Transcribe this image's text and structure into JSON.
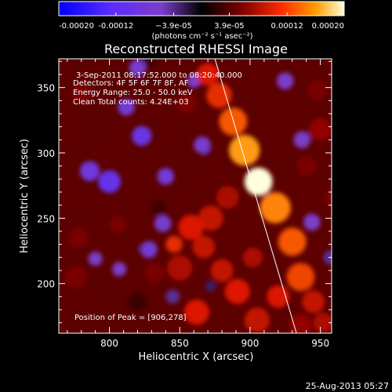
{
  "chart_data": {
    "type": "heatmap",
    "title": "Reconstructed RHESSI Image",
    "xlabel": "Heliocentric X (arcsec)",
    "ylabel": "Heliocentric Y (arcsec)",
    "xlim": [
      764,
      958
    ],
    "ylim": [
      162,
      372
    ],
    "x_ticks": [
      800,
      850,
      900,
      950
    ],
    "y_ticks": [
      200,
      250,
      300,
      350
    ],
    "x_tick_labels": [
      "800",
      "850",
      "900",
      "950"
    ],
    "y_tick_labels": [
      "200",
      "250",
      "300",
      "350"
    ],
    "colorbar": {
      "min": -0.0002,
      "max": 0.0002,
      "tick_values": [
        -0.0002,
        -0.00012,
        -3.9e-05,
        3.9e-05,
        0.00012,
        0.0002
      ],
      "tick_labels": [
        "-0.00020",
        "-0.00012",
        "−3.9e-05",
        "3.9e-05",
        "0.00012",
        "0.00020"
      ],
      "unit_label": "(photons cm⁻² s⁻¹ asec⁻²)"
    },
    "annotations": {
      "time_range": "3-Sep-2011 08:17:52.000 to 08:20:40.000",
      "detectors": "Detectors: 4F 5F 6F 7F 8F, AF",
      "energy_range": "Energy Range: 25.0 - 50.0 keV",
      "method_counts": "Clean     Total counts: 4.24E+03",
      "peak": "Position of Peak = [906,278]"
    },
    "peak": {
      "x": 906,
      "y": 278
    },
    "limb_line": [
      [
        875,
        372
      ],
      [
        933,
        162
      ]
    ],
    "blobs": [
      {
        "x": 906,
        "y": 278,
        "r": 10,
        "v": 0.0002
      },
      {
        "x": 896,
        "y": 302,
        "r": 11,
        "v": 0.00014
      },
      {
        "x": 888,
        "y": 324,
        "r": 10,
        "v": 0.00011
      },
      {
        "x": 878,
        "y": 344,
        "r": 9,
        "v": 9e-05
      },
      {
        "x": 870,
        "y": 360,
        "r": 8,
        "v": 8e-05
      },
      {
        "x": 918,
        "y": 258,
        "r": 11,
        "v": 0.00013
      },
      {
        "x": 930,
        "y": 232,
        "r": 10,
        "v": 0.00011
      },
      {
        "x": 936,
        "y": 205,
        "r": 10,
        "v": 0.0001
      },
      {
        "x": 945,
        "y": 186,
        "r": 8,
        "v": 7e-05
      },
      {
        "x": 884,
        "y": 266,
        "r": 8,
        "v": 6e-05
      },
      {
        "x": 872,
        "y": 250,
        "r": 9,
        "v": 7e-05
      },
      {
        "x": 858,
        "y": 243,
        "r": 9,
        "v": 8e-05
      },
      {
        "x": 846,
        "y": 230,
        "r": 6,
        "v": 9e-05
      },
      {
        "x": 867,
        "y": 228,
        "r": 8,
        "v": 7e-05
      },
      {
        "x": 850,
        "y": 212,
        "r": 9,
        "v": 6e-05
      },
      {
        "x": 880,
        "y": 210,
        "r": 8,
        "v": 7e-05
      },
      {
        "x": 902,
        "y": 220,
        "r": 7,
        "v": 6e-05
      },
      {
        "x": 891,
        "y": 194,
        "r": 9,
        "v": 8e-05
      },
      {
        "x": 920,
        "y": 190,
        "r": 8,
        "v": 8e-05
      },
      {
        "x": 862,
        "y": 178,
        "r": 9,
        "v": 8e-05
      },
      {
        "x": 905,
        "y": 172,
        "r": 9,
        "v": 7e-05
      },
      {
        "x": 936,
        "y": 168,
        "r": 8,
        "v": 5e-05
      },
      {
        "x": 952,
        "y": 170,
        "r": 7,
        "v": 6e-05
      },
      {
        "x": 832,
        "y": 208,
        "r": 7,
        "v": 4e-05
      },
      {
        "x": 816,
        "y": 227,
        "r": 5,
        "v": 3e-05
      },
      {
        "x": 806,
        "y": 245,
        "r": 6,
        "v": 4e-05
      },
      {
        "x": 835,
        "y": 258,
        "r": 5,
        "v": 2e-05
      },
      {
        "x": 790,
        "y": 252,
        "r": 6,
        "v": 3e-05
      },
      {
        "x": 778,
        "y": 235,
        "r": 7,
        "v": 4e-05
      },
      {
        "x": 776,
        "y": 205,
        "r": 8,
        "v": 4e-05
      },
      {
        "x": 798,
        "y": 198,
        "r": 7,
        "v": 3e-05
      },
      {
        "x": 820,
        "y": 186,
        "r": 7,
        "v": 2e-05
      },
      {
        "x": 792,
        "y": 318,
        "r": 6,
        "v": 3e-05
      },
      {
        "x": 780,
        "y": 346,
        "r": 7,
        "v": 4e-05
      },
      {
        "x": 820,
        "y": 350,
        "r": 6,
        "v": 3e-05
      },
      {
        "x": 855,
        "y": 338,
        "r": 7,
        "v": 4e-05
      },
      {
        "x": 845,
        "y": 305,
        "r": 6,
        "v": 3e-05
      },
      {
        "x": 872,
        "y": 296,
        "r": 6,
        "v": 3e-05
      },
      {
        "x": 948,
        "y": 348,
        "r": 7,
        "v": 4e-05
      },
      {
        "x": 950,
        "y": 318,
        "r": 8,
        "v": 5e-05
      },
      {
        "x": 940,
        "y": 290,
        "r": 7,
        "v": 4e-05
      },
      {
        "x": 960,
        "y": 266,
        "r": 7,
        "v": 4e-05
      },
      {
        "x": 828,
        "y": 372,
        "r": 6,
        "v": 2e-05
      },
      {
        "x": 800,
        "y": 278,
        "r": 8,
        "v": -9e-05
      },
      {
        "x": 823,
        "y": 313,
        "r": 7,
        "v": -8e-05
      },
      {
        "x": 812,
        "y": 335,
        "r": 6,
        "v": -6e-05
      },
      {
        "x": 786,
        "y": 286,
        "r": 7,
        "v": -7e-05
      },
      {
        "x": 838,
        "y": 246,
        "r": 6,
        "v": -5e-05
      },
      {
        "x": 828,
        "y": 226,
        "r": 6,
        "v": -6e-05
      },
      {
        "x": 820,
        "y": 365,
        "r": 6,
        "v": -5e-05
      },
      {
        "x": 860,
        "y": 355,
        "r": 5,
        "v": -4e-05
      },
      {
        "x": 866,
        "y": 306,
        "r": 6,
        "v": -5e-05
      },
      {
        "x": 840,
        "y": 282,
        "r": 6,
        "v": -6e-05
      },
      {
        "x": 790,
        "y": 219,
        "r": 5,
        "v": -4e-05
      },
      {
        "x": 807,
        "y": 211,
        "r": 5,
        "v": -4e-05
      },
      {
        "x": 845,
        "y": 190,
        "r": 5,
        "v": -3e-05
      },
      {
        "x": 937,
        "y": 310,
        "r": 6,
        "v": -4e-05
      },
      {
        "x": 944,
        "y": 247,
        "r": 6,
        "v": -4e-05
      },
      {
        "x": 957,
        "y": 220,
        "r": 5,
        "v": -3e-05
      },
      {
        "x": 925,
        "y": 355,
        "r": 6,
        "v": -4e-05
      },
      {
        "x": 872,
        "y": 198,
        "r": 4,
        "v": -2e-05
      }
    ]
  },
  "footer": {
    "timestamp": "25-Aug-2013 05:27"
  }
}
